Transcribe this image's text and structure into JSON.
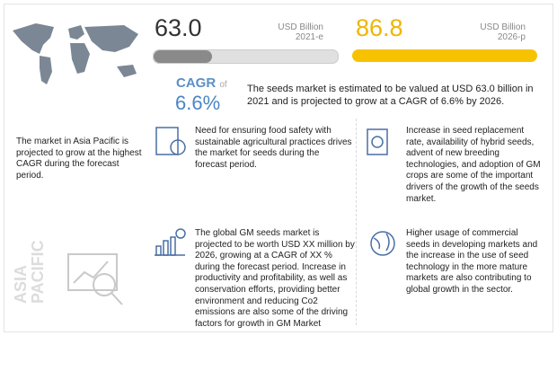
{
  "metrics": [
    {
      "value": "63.0",
      "unit": "USD Billion",
      "year": "2021-e"
    },
    {
      "value": "86.8",
      "unit": "USD Billion",
      "year": "2026-p"
    }
  ],
  "cagr": {
    "label": "CAGR",
    "of": "of",
    "value": "6.6%"
  },
  "summary": "The seeds market is estimated to be valued at USD 63.0 billion in 2021 and is projected to grow at a CAGR of 6.6% by 2026.",
  "region": {
    "note": "The market in Asia Pacific is projected to grow at the highest CAGR during the forecast period.",
    "watermark": "ASIA PACIFIC"
  },
  "points": [
    "Need for ensuring food safety with sustainable agricultural practices drives the market for seeds during the forecast period.",
    "Increase in seed replacement rate, availability of hybrid seeds, advent of new breeding technologies, and adoption of GM crops are some of the important drivers of the growth of the seeds market.",
    "The global GM seeds market is projected to be worth USD XX million by 2026, growing at a CAGR of XX % during the forecast period. Increase in productivity and profitability, as well as conservation efforts, providing better environment and reducing Co2 emissions are also some of the driving factors for growth in GM Market",
    "Higher usage of commercial seeds in developing markets and the increase in the use of seed technology in the more mature markets are also contributing to global growth in the sector."
  ]
}
